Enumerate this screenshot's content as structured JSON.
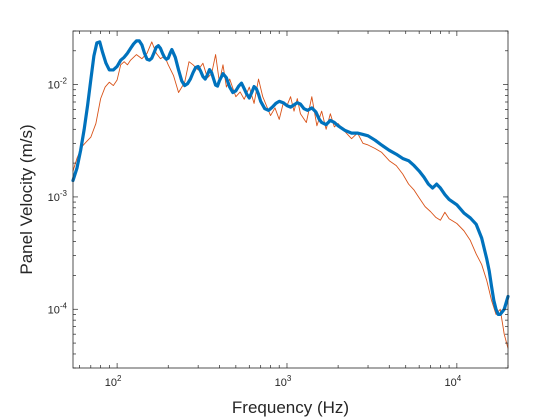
{
  "chart_data": {
    "type": "line",
    "title": "",
    "xlabel": "Frequency (Hz)",
    "ylabel": "Panel Velocity (m/s)",
    "xscale": "log",
    "yscale": "log",
    "xlim": [
      55,
      20000
    ],
    "ylim": [
      3e-05,
      0.03
    ],
    "grid": false,
    "legend": "none",
    "x_ticks": [
      {
        "value": 100,
        "base": "10",
        "exp": "2"
      },
      {
        "value": 1000,
        "base": "10",
        "exp": "3"
      },
      {
        "value": 10000,
        "base": "10",
        "exp": "4"
      }
    ],
    "y_ticks": [
      {
        "value": 0.0001,
        "base": "10",
        "exp": "-4"
      },
      {
        "value": 0.001,
        "base": "10",
        "exp": "-3"
      },
      {
        "value": 0.01,
        "base": "10",
        "exp": "-2"
      }
    ],
    "series": [
      {
        "color": "#D95319",
        "line_width": "thin",
        "x": [
          55,
          58,
          62,
          66,
          70,
          75,
          80,
          85,
          90,
          95,
          100,
          105,
          110,
          115,
          120,
          130,
          140,
          150,
          160,
          170,
          180,
          190,
          200,
          215,
          230,
          250,
          265,
          280,
          300,
          320,
          340,
          360,
          380,
          400,
          420,
          440,
          460,
          480,
          500,
          530,
          560,
          600,
          640,
          680,
          720,
          760,
          800,
          850,
          900,
          950,
          1000,
          1050,
          1100,
          1150,
          1200,
          1300,
          1400,
          1500,
          1600,
          1700,
          1800,
          1900,
          2000,
          2200,
          2400,
          2600,
          2800,
          3000,
          3300,
          3600,
          4000,
          4400,
          4800,
          5200,
          5600,
          6000,
          6500,
          7000,
          7500,
          8000,
          8500,
          9000,
          10000,
          11000,
          12000,
          13000,
          14000,
          15000,
          16000,
          17000,
          18000,
          19000,
          20000
        ],
        "y": [
          0.0017,
          0.0022,
          0.0028,
          0.0031,
          0.0034,
          0.0045,
          0.0075,
          0.0095,
          0.0105,
          0.0098,
          0.011,
          0.015,
          0.016,
          0.015,
          0.0165,
          0.0185,
          0.017,
          0.019,
          0.024,
          0.019,
          0.017,
          0.018,
          0.015,
          0.012,
          0.0085,
          0.0105,
          0.016,
          0.015,
          0.0135,
          0.0155,
          0.0115,
          0.0125,
          0.0185,
          0.0105,
          0.015,
          0.0095,
          0.0112,
          0.0093,
          0.0078,
          0.0086,
          0.0074,
          0.0095,
          0.0068,
          0.0112,
          0.0078,
          0.0064,
          0.0053,
          0.0062,
          0.0049,
          0.0068,
          0.0065,
          0.0078,
          0.0058,
          0.0075,
          0.0055,
          0.0046,
          0.0078,
          0.0043,
          0.0058,
          0.004,
          0.0055,
          0.0042,
          0.0045,
          0.0038,
          0.0033,
          0.0037,
          0.003,
          0.0029,
          0.0027,
          0.0025,
          0.0021,
          0.0019,
          0.0016,
          0.0013,
          0.00115,
          0.00098,
          0.00082,
          0.00074,
          0.00066,
          0.00062,
          0.00073,
          0.00064,
          0.00058,
          0.0005,
          0.00041,
          0.00031,
          0.00025,
          0.00018,
          0.00012,
          9e-05,
          0.0001,
          6e-05,
          4.5e-05
        ]
      },
      {
        "color": "#0072BD",
        "line_width": "thick",
        "x": [
          55,
          58,
          61,
          64,
          67,
          70,
          73,
          76,
          79,
          82,
          86,
          90,
          95,
          100,
          105,
          110,
          115,
          120,
          125,
          130,
          135,
          140,
          145,
          150,
          155,
          160,
          165,
          170,
          175,
          180,
          185,
          190,
          195,
          200,
          205,
          210,
          220,
          230,
          240,
          250,
          260,
          270,
          280,
          290,
          300,
          310,
          320,
          330,
          340,
          350,
          360,
          370,
          380,
          390,
          400,
          420,
          440,
          460,
          480,
          500,
          520,
          540,
          560,
          580,
          600,
          620,
          640,
          660,
          680,
          700,
          740,
          780,
          820,
          860,
          900,
          950,
          1000,
          1050,
          1100,
          1150,
          1200,
          1260,
          1320,
          1400,
          1480,
          1550,
          1600,
          1700,
          1800,
          1900,
          2000,
          2200,
          2400,
          2600,
          2800,
          3000,
          3300,
          3600,
          4000,
          4400,
          4800,
          5200,
          5600,
          6000,
          6400,
          6800,
          7200,
          7600,
          8000,
          8500,
          9000,
          10000,
          11000,
          12000,
          13000,
          14000,
          15000,
          15500,
          16000,
          16500,
          17000,
          17500,
          18000,
          19000,
          20000
        ],
        "y": [
          0.0014,
          0.0018,
          0.0026,
          0.004,
          0.0065,
          0.011,
          0.018,
          0.0235,
          0.024,
          0.0195,
          0.0155,
          0.0135,
          0.0135,
          0.0145,
          0.0165,
          0.0175,
          0.019,
          0.021,
          0.023,
          0.0245,
          0.0245,
          0.0225,
          0.019,
          0.0168,
          0.0165,
          0.0172,
          0.0192,
          0.0215,
          0.0222,
          0.021,
          0.019,
          0.0175,
          0.0168,
          0.0172,
          0.019,
          0.0205,
          0.0175,
          0.0135,
          0.0108,
          0.0098,
          0.0102,
          0.0112,
          0.0128,
          0.0142,
          0.0145,
          0.0132,
          0.0118,
          0.0112,
          0.0122,
          0.0136,
          0.0128,
          0.0112,
          0.0099,
          0.0097,
          0.0108,
          0.0125,
          0.0115,
          0.0095,
          0.0085,
          0.0088,
          0.0097,
          0.0103,
          0.0092,
          0.0082,
          0.0076,
          0.0085,
          0.0096,
          0.0092,
          0.0082,
          0.0071,
          0.0061,
          0.0059,
          0.0063,
          0.0068,
          0.0071,
          0.0069,
          0.0065,
          0.0063,
          0.0066,
          0.0069,
          0.0067,
          0.0061,
          0.0059,
          0.0062,
          0.0057,
          0.0049,
          0.0046,
          0.0044,
          0.0048,
          0.0046,
          0.0043,
          0.0039,
          0.0037,
          0.0037,
          0.0036,
          0.0035,
          0.0032,
          0.0029,
          0.0026,
          0.0024,
          0.0022,
          0.0021,
          0.0019,
          0.0017,
          0.0015,
          0.0013,
          0.0012,
          0.0013,
          0.0012,
          0.00105,
          0.00095,
          0.00085,
          0.00072,
          0.00065,
          0.00057,
          0.00043,
          0.00028,
          0.00022,
          0.00016,
          0.00012,
          0.0001,
          9e-05,
          9e-05,
          0.0001,
          0.00013
        ]
      }
    ]
  }
}
